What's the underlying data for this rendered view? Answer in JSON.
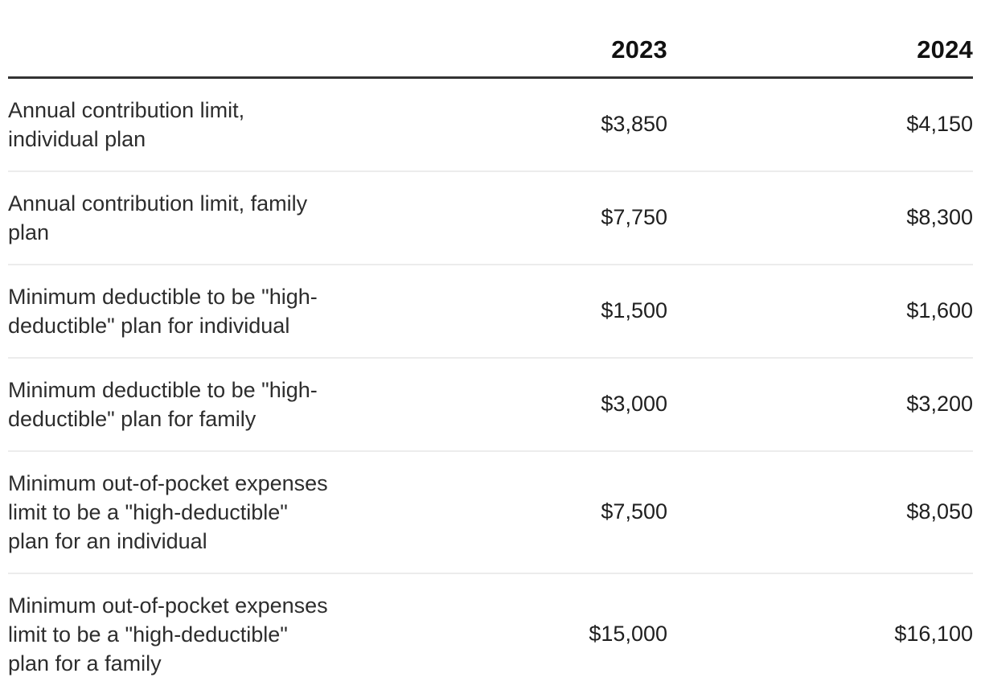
{
  "table": {
    "columns": [
      "",
      "2023",
      "2024"
    ],
    "rows": [
      {
        "label": "Annual contribution limit,\nindividual plan",
        "y2023": "$3,850",
        "y2024": "$4,150"
      },
      {
        "label": "Annual contribution limit, family\nplan",
        "y2023": "$7,750",
        "y2024": "$8,300"
      },
      {
        "label": "Minimum deductible to be \"high-\ndeductible\" plan for individual",
        "y2023": "$1,500",
        "y2024": "$1,600"
      },
      {
        "label": "Minimum deductible to be \"high-\ndeductible\" plan for family",
        "y2023": "$3,000",
        "y2024": "$3,200"
      },
      {
        "label": "Minimum out-of-pocket expenses\nlimit to be a \"high-deductible\"\nplan for an individual",
        "y2023": "$7,500",
        "y2024": "$8,050"
      },
      {
        "label": "Minimum out-of-pocket expenses\nlimit to be a \"high-deductible\"\nplan for a family",
        "y2023": "$15,000",
        "y2024": "$16,100"
      }
    ]
  },
  "colors": {
    "header_text": "#111111",
    "body_text": "#2d2d2d",
    "header_rule": "#333333",
    "row_separator": "#ececec",
    "background": "#ffffff"
  }
}
